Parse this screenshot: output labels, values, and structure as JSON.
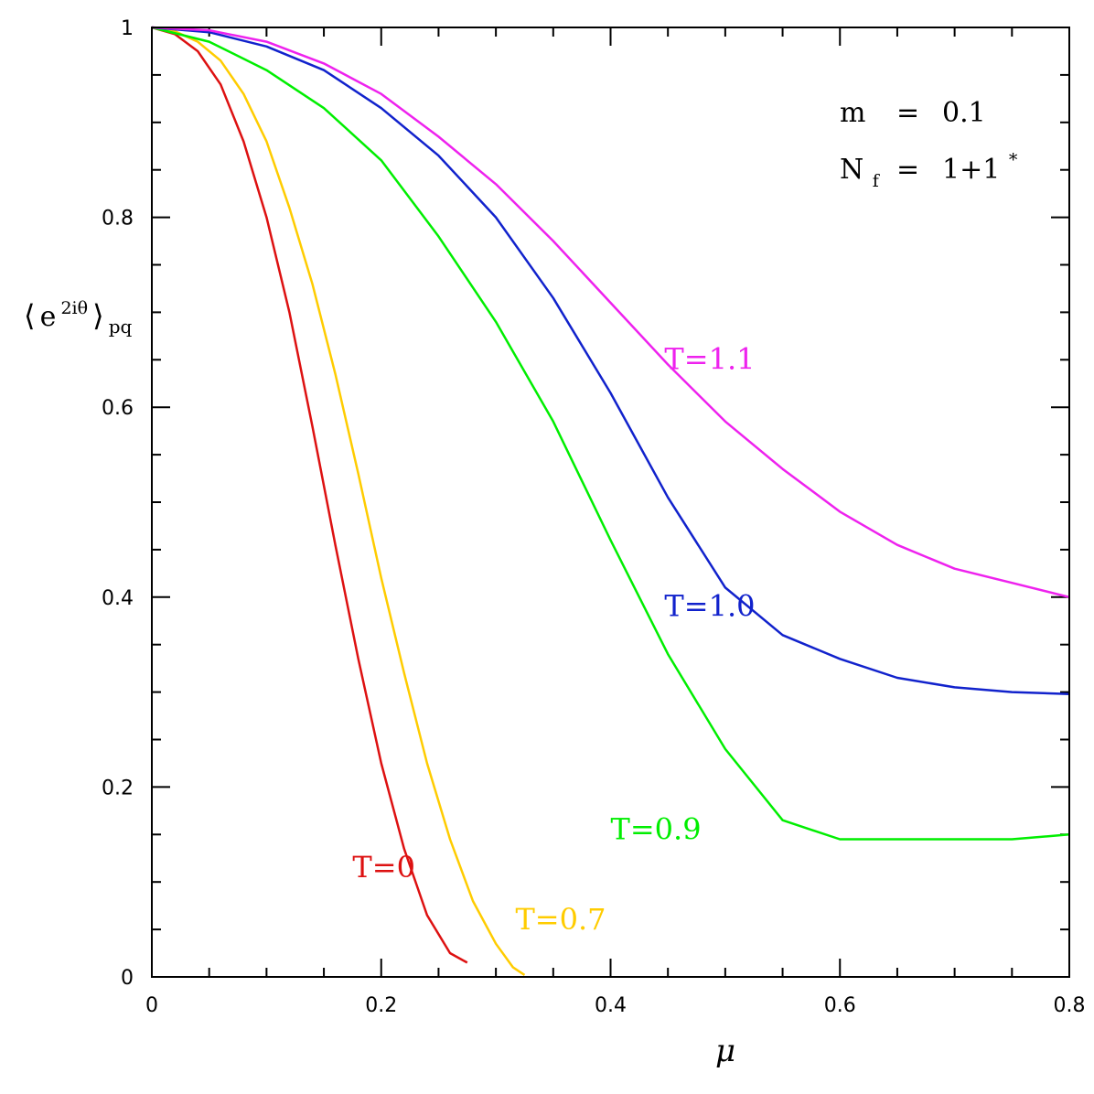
{
  "chart_data": {
    "type": "line",
    "title": "",
    "xlabel": "μ",
    "ylabel": {
      "open": "⟨",
      "base": "e",
      "sup": "2iθ",
      "close": "⟩",
      "sub": "pq"
    },
    "xlim": [
      0,
      0.8
    ],
    "ylim": [
      0,
      1
    ],
    "x_ticks": [
      "0",
      "0.2",
      "0.4",
      "0.6",
      "0.8"
    ],
    "y_ticks": [
      "0",
      "0.2",
      "0.4",
      "0.6",
      "0.8",
      "1"
    ],
    "grid": false,
    "legend": "none",
    "annotations": {
      "mass": {
        "lhs": "m",
        "eq": "=",
        "rhs": "0.1"
      },
      "flavors": {
        "lhs_base": "N",
        "lhs_sub": "f",
        "eq": "=",
        "rhs": "1+1",
        "rhs_sup": "*"
      }
    },
    "series": [
      {
        "label": "T=0",
        "color": "#dd1111",
        "points": [
          [
            0,
            1
          ],
          [
            0.02,
            0.993
          ],
          [
            0.04,
            0.975
          ],
          [
            0.06,
            0.94
          ],
          [
            0.08,
            0.88
          ],
          [
            0.1,
            0.8
          ],
          [
            0.12,
            0.7
          ],
          [
            0.14,
            0.58
          ],
          [
            0.16,
            0.455
          ],
          [
            0.18,
            0.335
          ],
          [
            0.2,
            0.225
          ],
          [
            0.22,
            0.135
          ],
          [
            0.24,
            0.065
          ],
          [
            0.26,
            0.025
          ],
          [
            0.275,
            0.015
          ]
        ]
      },
      {
        "label": "T=0.7",
        "color": "#ffcc00",
        "points": [
          [
            0,
            1
          ],
          [
            0.02,
            0.996
          ],
          [
            0.04,
            0.985
          ],
          [
            0.06,
            0.965
          ],
          [
            0.08,
            0.93
          ],
          [
            0.1,
            0.88
          ],
          [
            0.12,
            0.81
          ],
          [
            0.14,
            0.73
          ],
          [
            0.16,
            0.635
          ],
          [
            0.18,
            0.53
          ],
          [
            0.2,
            0.42
          ],
          [
            0.22,
            0.32
          ],
          [
            0.24,
            0.225
          ],
          [
            0.26,
            0.145
          ],
          [
            0.28,
            0.08
          ],
          [
            0.3,
            0.035
          ],
          [
            0.315,
            0.01
          ],
          [
            0.325,
            0.002
          ]
        ]
      },
      {
        "label": "T=0.9",
        "color": "#00ee00",
        "points": [
          [
            0,
            1
          ],
          [
            0.05,
            0.985
          ],
          [
            0.1,
            0.955
          ],
          [
            0.15,
            0.915
          ],
          [
            0.2,
            0.86
          ],
          [
            0.25,
            0.78
          ],
          [
            0.3,
            0.69
          ],
          [
            0.35,
            0.585
          ],
          [
            0.4,
            0.46
          ],
          [
            0.45,
            0.34
          ],
          [
            0.5,
            0.24
          ],
          [
            0.55,
            0.165
          ],
          [
            0.6,
            0.145
          ],
          [
            0.65,
            0.145
          ],
          [
            0.7,
            0.145
          ],
          [
            0.75,
            0.145
          ],
          [
            0.8,
            0.15
          ]
        ]
      },
      {
        "label": "T=1.0",
        "color": "#1122cc",
        "points": [
          [
            0,
            1
          ],
          [
            0.05,
            0.995
          ],
          [
            0.1,
            0.98
          ],
          [
            0.15,
            0.955
          ],
          [
            0.2,
            0.915
          ],
          [
            0.25,
            0.865
          ],
          [
            0.3,
            0.8
          ],
          [
            0.35,
            0.715
          ],
          [
            0.4,
            0.615
          ],
          [
            0.45,
            0.505
          ],
          [
            0.5,
            0.41
          ],
          [
            0.55,
            0.36
          ],
          [
            0.6,
            0.335
          ],
          [
            0.65,
            0.315
          ],
          [
            0.7,
            0.305
          ],
          [
            0.75,
            0.3
          ],
          [
            0.8,
            0.298
          ]
        ]
      },
      {
        "label": "T=1.1",
        "color": "#ee22ee",
        "points": [
          [
            0,
            1
          ],
          [
            0.05,
            0.997
          ],
          [
            0.1,
            0.985
          ],
          [
            0.15,
            0.962
          ],
          [
            0.2,
            0.93
          ],
          [
            0.25,
            0.885
          ],
          [
            0.3,
            0.835
          ],
          [
            0.35,
            0.775
          ],
          [
            0.4,
            0.71
          ],
          [
            0.45,
            0.645
          ],
          [
            0.5,
            0.585
          ],
          [
            0.55,
            0.535
          ],
          [
            0.6,
            0.49
          ],
          [
            0.65,
            0.455
          ],
          [
            0.7,
            0.43
          ],
          [
            0.75,
            0.415
          ],
          [
            0.8,
            0.4
          ]
        ]
      }
    ]
  }
}
